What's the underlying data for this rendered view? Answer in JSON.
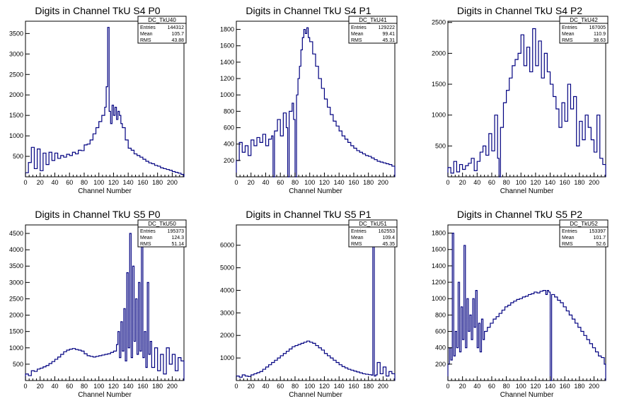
{
  "chart_data": [
    {
      "type": "histogram",
      "title": "Digits in Channel TkU S4 P0",
      "xlabel": "Channel Number",
      "ylabel": "",
      "xlim": [
        0,
        216
      ],
      "ylim": [
        0,
        3800
      ],
      "xticks": [
        0,
        20,
        40,
        60,
        80,
        100,
        120,
        140,
        160,
        180,
        200
      ],
      "yticks": [
        500,
        1000,
        1500,
        2000,
        2500,
        3000,
        3500
      ],
      "stats": {
        "name": "DC_TkU40",
        "entries": "144312",
        "mean": "105.7",
        "rms": "43.88"
      },
      "series": [
        {
          "name": "DC_TkU40",
          "color": "#000080",
          "x": [
            0,
            4,
            8,
            12,
            16,
            20,
            24,
            28,
            32,
            36,
            40,
            44,
            48,
            52,
            56,
            60,
            64,
            68,
            72,
            76,
            80,
            84,
            88,
            92,
            96,
            100,
            104,
            108,
            110,
            112,
            114,
            116,
            118,
            120,
            122,
            124,
            126,
            128,
            130,
            132,
            136,
            140,
            144,
            148,
            152,
            156,
            160,
            164,
            168,
            172,
            176,
            180,
            184,
            188,
            192,
            196,
            200,
            204,
            208,
            212,
            216
          ],
          "values": [
            100,
            350,
            720,
            200,
            680,
            150,
            580,
            300,
            600,
            400,
            580,
            450,
            520,
            480,
            550,
            520,
            600,
            560,
            650,
            640,
            780,
            800,
            900,
            1050,
            1200,
            1350,
            1500,
            1700,
            2200,
            3650,
            1600,
            1300,
            1750,
            1500,
            1700,
            1400,
            1600,
            1500,
            1300,
            1200,
            900,
            700,
            650,
            560,
            520,
            480,
            430,
            380,
            340,
            320,
            280,
            260,
            220,
            200,
            180,
            160,
            130,
            110,
            90,
            60,
            40
          ]
        }
      ]
    },
    {
      "type": "histogram",
      "title": "Digits in Channel TkU S4 P1",
      "xlabel": "Channel Number",
      "ylabel": "",
      "xlim": [
        0,
        216
      ],
      "ylim": [
        0,
        1900
      ],
      "xticks": [
        0,
        20,
        40,
        60,
        80,
        100,
        120,
        140,
        160,
        180,
        200
      ],
      "yticks": [
        200,
        400,
        600,
        800,
        1000,
        1200,
        1400,
        1600,
        1800
      ],
      "stats": {
        "name": "DC_TkU41",
        "entries": "129222",
        "mean": "99.41",
        "rms": "45.31"
      },
      "series": [
        {
          "name": "DC_TkU41",
          "color": "#000080",
          "x": [
            0,
            4,
            8,
            12,
            16,
            20,
            24,
            28,
            32,
            36,
            40,
            44,
            48,
            50,
            52,
            56,
            60,
            64,
            68,
            70,
            72,
            76,
            78,
            80,
            82,
            84,
            86,
            88,
            90,
            92,
            94,
            96,
            98,
            100,
            104,
            108,
            112,
            116,
            120,
            124,
            128,
            132,
            136,
            140,
            144,
            148,
            152,
            156,
            160,
            164,
            168,
            172,
            176,
            180,
            184,
            188,
            192,
            196,
            200,
            204,
            208,
            212,
            216
          ],
          "values": [
            200,
            420,
            300,
            380,
            260,
            450,
            380,
            480,
            420,
            520,
            380,
            460,
            500,
            0,
            560,
            700,
            500,
            780,
            600,
            0,
            800,
            900,
            700,
            0,
            1000,
            1200,
            1350,
            1550,
            1700,
            1800,
            1750,
            1820,
            1700,
            1650,
            1500,
            1350,
            1200,
            1080,
            950,
            850,
            760,
            680,
            620,
            560,
            500,
            460,
            420,
            380,
            350,
            320,
            300,
            280,
            260,
            250,
            230,
            210,
            190,
            180,
            170,
            160,
            150,
            130,
            80
          ]
        }
      ]
    },
    {
      "type": "histogram",
      "title": "Digits in Channel TkU S4 P2",
      "xlabel": "Channel Number",
      "ylabel": "",
      "xlim": [
        0,
        216
      ],
      "ylim": [
        0,
        2520
      ],
      "xticks": [
        0,
        20,
        40,
        60,
        80,
        100,
        120,
        140,
        160,
        180,
        200
      ],
      "yticks": [
        500,
        1000,
        1500,
        2000,
        2500
      ],
      "stats": {
        "name": "DC_TkU42",
        "entries": "167005",
        "mean": "110.9",
        "rms": "38.63"
      },
      "series": [
        {
          "name": "DC_TkU42",
          "color": "#000080",
          "x": [
            0,
            4,
            8,
            12,
            16,
            20,
            24,
            28,
            32,
            36,
            40,
            44,
            48,
            52,
            56,
            60,
            64,
            68,
            70,
            72,
            76,
            80,
            84,
            88,
            92,
            96,
            100,
            104,
            108,
            112,
            116,
            120,
            124,
            128,
            132,
            136,
            140,
            144,
            148,
            152,
            156,
            160,
            164,
            168,
            172,
            176,
            180,
            184,
            188,
            192,
            196,
            200,
            204,
            208,
            212,
            216
          ],
          "values": [
            150,
            60,
            250,
            80,
            200,
            120,
            180,
            220,
            300,
            100,
            250,
            400,
            500,
            350,
            700,
            420,
            1000,
            300,
            0,
            800,
            1200,
            1400,
            1600,
            1800,
            1900,
            2000,
            2300,
            1800,
            2100,
            1700,
            2400,
            1800,
            2200,
            1600,
            2000,
            1700,
            1500,
            1300,
            1100,
            800,
            1200,
            900,
            1500,
            1100,
            1300,
            500,
            900,
            600,
            1000,
            800,
            600,
            400,
            1000,
            300,
            200,
            50
          ]
        }
      ]
    },
    {
      "type": "histogram",
      "title": "Digits in Channel TkU S5 P0",
      "xlabel": "Channel Number",
      "ylabel": "",
      "xlim": [
        0,
        216
      ],
      "ylim": [
        0,
        4760
      ],
      "xticks": [
        0,
        20,
        40,
        60,
        80,
        100,
        120,
        140,
        160,
        180,
        200
      ],
      "yticks": [
        500,
        1000,
        1500,
        2000,
        2500,
        3000,
        3500,
        4000,
        4500
      ],
      "stats": {
        "name": "DC_TkU50",
        "entries": "195373",
        "mean": "124.3",
        "rms": "51.14"
      },
      "series": [
        {
          "name": "DC_TkU50",
          "color": "#000080",
          "x": [
            0,
            4,
            8,
            12,
            16,
            20,
            24,
            28,
            32,
            36,
            40,
            44,
            48,
            52,
            56,
            60,
            64,
            68,
            72,
            76,
            80,
            84,
            88,
            92,
            96,
            100,
            104,
            108,
            112,
            116,
            120,
            124,
            126,
            128,
            130,
            132,
            134,
            136,
            138,
            140,
            142,
            144,
            146,
            148,
            150,
            152,
            154,
            156,
            158,
            160,
            162,
            164,
            166,
            168,
            170,
            172,
            176,
            180,
            184,
            188,
            192,
            196,
            200,
            204,
            208,
            212,
            216
          ],
          "values": [
            200,
            150,
            300,
            280,
            350,
            380,
            420,
            460,
            520,
            580,
            650,
            720,
            800,
            880,
            930,
            960,
            980,
            950,
            930,
            900,
            820,
            760,
            740,
            720,
            740,
            760,
            780,
            800,
            820,
            860,
            900,
            1100,
            1500,
            700,
            1800,
            900,
            2200,
            600,
            3300,
            1000,
            4500,
            700,
            3500,
            1200,
            2500,
            800,
            3000,
            900,
            4450,
            700,
            1500,
            400,
            3000,
            800,
            1200,
            400,
            1000,
            300,
            800,
            200,
            1000,
            500,
            800,
            300,
            700,
            600,
            1000
          ]
        }
      ]
    },
    {
      "type": "histogram",
      "title": "Digits in Channel TkU S5 P1",
      "xlabel": "Channel Number",
      "ylabel": "",
      "xlim": [
        0,
        216
      ],
      "ylim": [
        0,
        6900
      ],
      "xticks": [
        0,
        20,
        40,
        60,
        80,
        100,
        120,
        140,
        160,
        180,
        200
      ],
      "yticks": [
        1000,
        2000,
        3000,
        4000,
        5000,
        6000
      ],
      "stats": {
        "name": "DC_TkU51",
        "entries": "162553",
        "mean": "109.4",
        "rms": "45.35"
      },
      "series": [
        {
          "name": "DC_TkU51",
          "color": "#000080",
          "x": [
            0,
            4,
            8,
            12,
            16,
            20,
            24,
            28,
            32,
            36,
            40,
            44,
            48,
            52,
            56,
            60,
            64,
            68,
            72,
            76,
            80,
            84,
            88,
            92,
            96,
            100,
            104,
            108,
            112,
            116,
            120,
            124,
            128,
            132,
            136,
            140,
            144,
            148,
            152,
            156,
            160,
            164,
            168,
            172,
            176,
            180,
            184,
            186,
            188,
            190,
            192,
            196,
            200,
            204,
            208,
            212,
            216
          ],
          "values": [
            200,
            150,
            250,
            200,
            180,
            250,
            300,
            350,
            400,
            500,
            600,
            700,
            800,
            900,
            1000,
            1100,
            1200,
            1300,
            1400,
            1500,
            1550,
            1600,
            1650,
            1700,
            1750,
            1700,
            1650,
            1550,
            1450,
            1350,
            1200,
            1100,
            1000,
            900,
            800,
            700,
            620,
            560,
            500,
            460,
            420,
            380,
            340,
            300,
            280,
            260,
            240,
            6900,
            200,
            250,
            800,
            300,
            600,
            200,
            400,
            300,
            100
          ]
        }
      ]
    },
    {
      "type": "histogram",
      "title": "Digits in Channel TkU S5 P2",
      "xlabel": "Channel Number",
      "ylabel": "",
      "xlim": [
        0,
        216
      ],
      "ylim": [
        0,
        1900
      ],
      "xticks": [
        0,
        20,
        40,
        60,
        80,
        100,
        120,
        140,
        160,
        180,
        200
      ],
      "yticks": [
        200,
        400,
        600,
        800,
        1000,
        1200,
        1400,
        1600,
        1800
      ],
      "stats": {
        "name": "DC_TkU52",
        "entries": "153397",
        "mean": "101.7",
        "rms": "52.6"
      },
      "series": [
        {
          "name": "DC_TkU52",
          "color": "#000080",
          "x": [
            0,
            2,
            4,
            6,
            8,
            10,
            12,
            14,
            16,
            18,
            20,
            22,
            24,
            26,
            28,
            30,
            32,
            34,
            36,
            38,
            40,
            42,
            44,
            46,
            48,
            50,
            54,
            58,
            62,
            66,
            70,
            74,
            78,
            82,
            86,
            90,
            94,
            98,
            102,
            106,
            110,
            114,
            118,
            122,
            126,
            130,
            134,
            136,
            138,
            140,
            142,
            146,
            150,
            154,
            158,
            162,
            166,
            170,
            174,
            178,
            182,
            186,
            190,
            194,
            198,
            202,
            206,
            210,
            214,
            216
          ],
          "values": [
            200,
            400,
            250,
            1800,
            300,
            600,
            400,
            1200,
            350,
            900,
            500,
            1650,
            400,
            1000,
            600,
            800,
            500,
            1000,
            650,
            1100,
            400,
            700,
            350,
            750,
            500,
            600,
            650,
            700,
            750,
            780,
            820,
            860,
            900,
            920,
            950,
            970,
            990,
            1000,
            1020,
            1030,
            1050,
            1060,
            1080,
            1070,
            1090,
            1100,
            1050,
            1100,
            1080,
            0,
            1050,
            1020,
            980,
            950,
            900,
            850,
            800,
            750,
            700,
            650,
            600,
            550,
            500,
            450,
            400,
            350,
            300,
            280,
            200,
            100
          ]
        }
      ]
    }
  ]
}
